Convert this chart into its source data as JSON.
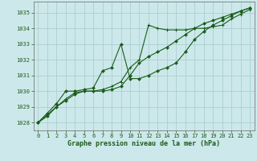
{
  "title": "Graphe pression niveau de la mer (hPa)",
  "background_color": "#cce8ea",
  "grid_color": "#aad0d0",
  "line_color": "#1a5c1a",
  "marker_color": "#1a5c1a",
  "xlim": [
    -0.5,
    23.5
  ],
  "ylim": [
    1027.5,
    1035.7
  ],
  "yticks": [
    1028,
    1029,
    1030,
    1031,
    1032,
    1033,
    1034,
    1035
  ],
  "xticks": [
    0,
    1,
    2,
    3,
    4,
    5,
    6,
    7,
    8,
    9,
    10,
    11,
    12,
    13,
    14,
    15,
    16,
    17,
    18,
    19,
    20,
    21,
    22,
    23
  ],
  "series1_x": [
    0,
    1,
    2,
    3,
    4,
    5,
    6,
    7,
    8,
    9,
    10,
    11,
    12,
    13,
    14,
    15,
    16,
    17,
    18,
    19,
    20,
    21,
    22,
    23
  ],
  "series1_y": [
    1028.0,
    1028.6,
    1029.2,
    1030.0,
    1030.0,
    1030.1,
    1030.2,
    1031.3,
    1031.5,
    1033.0,
    1030.8,
    1030.8,
    1031.0,
    1031.3,
    1031.5,
    1031.8,
    1032.5,
    1033.3,
    1033.8,
    1034.2,
    1034.5,
    1034.8,
    1035.1,
    1035.3
  ],
  "series2_x": [
    0,
    1,
    2,
    3,
    4,
    5,
    6,
    7,
    8,
    9,
    10,
    11,
    12,
    13,
    14,
    15,
    16,
    17,
    18,
    19,
    20,
    21,
    22,
    23
  ],
  "series2_y": [
    1028.0,
    1028.5,
    1029.0,
    1029.5,
    1029.9,
    1030.0,
    1030.0,
    1030.1,
    1030.3,
    1030.6,
    1031.5,
    1032.0,
    1034.2,
    1034.0,
    1033.9,
    1033.9,
    1033.9,
    1034.0,
    1034.0,
    1034.1,
    1034.2,
    1034.6,
    1034.9,
    1035.2
  ],
  "series3_x": [
    0,
    1,
    2,
    3,
    4,
    5,
    6,
    7,
    8,
    9,
    10,
    11,
    12,
    13,
    14,
    15,
    16,
    17,
    18,
    19,
    20,
    21,
    22,
    23
  ],
  "series3_y": [
    1028.0,
    1028.4,
    1029.0,
    1029.4,
    1029.8,
    1030.0,
    1030.0,
    1030.0,
    1030.1,
    1030.3,
    1031.0,
    1031.8,
    1032.2,
    1032.5,
    1032.8,
    1033.2,
    1033.6,
    1034.0,
    1034.3,
    1034.5,
    1034.7,
    1034.9,
    1035.1,
    1035.3
  ]
}
